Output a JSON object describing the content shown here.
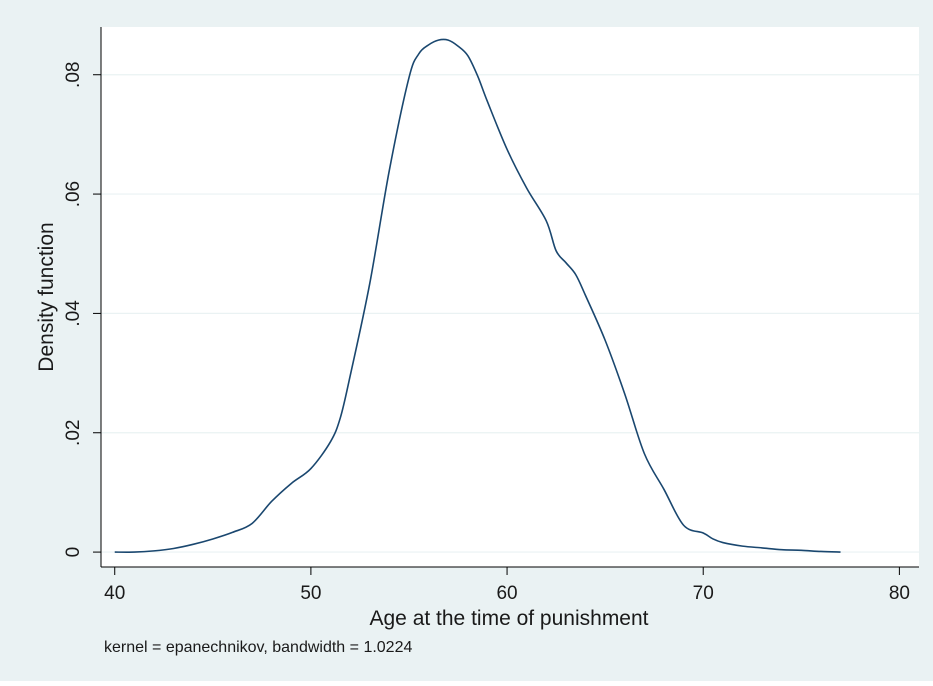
{
  "chart_data": {
    "type": "line",
    "title": "",
    "xlabel": "Age at the time of punishment",
    "ylabel": "Density function",
    "note": "kernel = epanechnikov, bandwidth = 1.0224",
    "xlim": [
      39.3,
      81
    ],
    "ylim": [
      -0.0025,
      0.088
    ],
    "x_ticks": [
      40,
      50,
      60,
      70,
      80
    ],
    "x_tick_labels": [
      "40",
      "50",
      "60",
      "70",
      "80"
    ],
    "y_ticks": [
      0,
      0.02,
      0.04,
      0.06,
      0.08
    ],
    "y_tick_labels": [
      "0",
      ".02",
      ".04",
      ".06",
      ".08"
    ],
    "grid": true,
    "legend": "none",
    "colors": {
      "outer_background": "#eaf2f3",
      "plot_background": "#ffffff",
      "line": "#1a476f",
      "grid": "#eaf2f3",
      "axis": "#000000"
    },
    "series": [
      {
        "x": [
          40,
          41,
          42,
          43,
          44,
          45,
          46,
          47,
          48,
          49,
          50,
          51,
          51.5,
          52,
          53,
          54,
          55,
          55.5,
          56,
          56.5,
          57,
          57.5,
          58,
          58.5,
          59,
          60,
          61,
          62,
          62.5,
          63,
          63.5,
          64,
          65,
          66,
          67,
          68,
          69,
          70,
          70.5,
          71,
          72,
          73,
          74,
          75,
          76,
          77
        ],
        "y": [
          0,
          0,
          0.0002,
          0.0006,
          0.0013,
          0.0022,
          0.0033,
          0.0048,
          0.0085,
          0.0115,
          0.014,
          0.0185,
          0.0225,
          0.0295,
          0.045,
          0.064,
          0.0795,
          0.0835,
          0.085,
          0.0858,
          0.0858,
          0.0848,
          0.0832,
          0.0798,
          0.0755,
          0.0675,
          0.061,
          0.0555,
          0.0505,
          0.0485,
          0.0465,
          0.043,
          0.0355,
          0.0265,
          0.0165,
          0.0105,
          0.0045,
          0.0032,
          0.0022,
          0.0016,
          0.001,
          0.0007,
          0.0004,
          0.0003,
          0.0001,
          0
        ]
      }
    ]
  }
}
